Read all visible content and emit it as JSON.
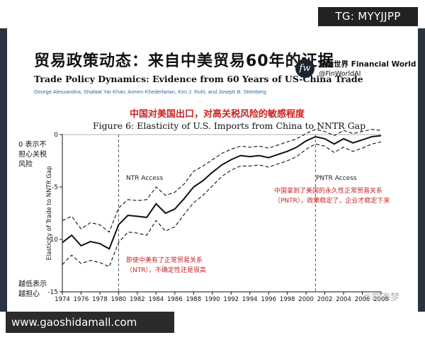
{
  "badge": "TG: MYYJJPP",
  "site": "www.gaoshidamall.com",
  "watermark": "©四海梦",
  "header": {
    "title_cn": "贸易政策动态：来自中美贸易60年的证据",
    "title_en": "Trade Policy Dynamics: Evidence from 60 Years of US-China Trade",
    "authors": "George Alessandria, Shafaat Yar Khan, Armen Khederlarian, Kim J. Ruhl, and Joseph B. Steinberg"
  },
  "brand": {
    "logo_text": "fw",
    "name": "金融世界 Financial World",
    "handle": "@FinWorldAI"
  },
  "figure": {
    "caption_cn": "中国对美国出口，对高关税风险的敏感程度",
    "caption_en": "Figure 6: Elasticity of U.S. Imports from China to NNTR Gap"
  },
  "side_notes": {
    "top_line1": "0 表示不",
    "top_line2": "担心关税",
    "top_line3": "风险",
    "bottom_line1": "越低表示",
    "bottom_line2": "越担心"
  },
  "annotations": {
    "ntr_access": "NTR Access",
    "pntr_access": "PNTR Access",
    "pntr_note_line1": "中国拿到了美国的永久性正常贸易关系",
    "pntr_note_line2": "（PNTR），政策稳定了，企业才稳定下来",
    "ntr_note_line1": "即使中美有了正常贸易关系",
    "ntr_note_line2": "（NTR），不确定性还是很高"
  },
  "colors": {
    "accent_red": "#cc2222",
    "line": "#111111",
    "frame": "#2c3340"
  },
  "chart_data": {
    "type": "line",
    "title": "Figure 6: Elasticity of U.S. Imports from China to NNTR Gap",
    "xlabel": "",
    "ylabel": "Elasticity of Trade to NNTR Gap",
    "xlim": [
      1974,
      2008
    ],
    "ylim": [
      -15,
      0
    ],
    "x_ticks": [
      1974,
      1976,
      1978,
      1980,
      1982,
      1984,
      1986,
      1988,
      1990,
      1992,
      1994,
      1996,
      1998,
      2000,
      2002,
      2004,
      2006,
      2008
    ],
    "x_tick_labels": [
      "1974",
      "1976",
      "1978",
      "1980",
      "1982",
      "1984",
      "1986",
      "1988",
      "1990",
      "1992",
      "1994",
      "1996",
      "1998",
      "2000",
      "2002",
      "2004",
      "2006",
      "2008"
    ],
    "y_ticks": [
      0,
      -5,
      -10,
      -15
    ],
    "y_tick_labels": [
      "0",
      "-5",
      "-10",
      "-15"
    ],
    "zero_line": true,
    "reference_lines": [
      {
        "x": 1980,
        "style": "dashed",
        "label": "NTR Access"
      },
      {
        "x": 2001,
        "style": "dashed",
        "label": "PNTR Access"
      }
    ],
    "x": [
      1974,
      1975,
      1976,
      1977,
      1978,
      1979,
      1980,
      1981,
      1982,
      1983,
      1984,
      1985,
      1986,
      1987,
      1988,
      1989,
      1990,
      1991,
      1992,
      1993,
      1994,
      1995,
      1996,
      1997,
      1998,
      1999,
      2000,
      2001,
      2002,
      2003,
      2004,
      2005,
      2006,
      2007,
      2008
    ],
    "series": [
      {
        "role": "estimate",
        "style": "solid",
        "values": [
          -10.3,
          -9.6,
          -10.6,
          -10.2,
          -10.4,
          -10.9,
          -8.6,
          -7.7,
          -7.8,
          -7.9,
          -6.6,
          -7.5,
          -7.1,
          -6.1,
          -5.0,
          -4.4,
          -3.6,
          -2.9,
          -2.4,
          -2.0,
          -2.1,
          -2.0,
          -2.2,
          -1.9,
          -1.6,
          -1.2,
          -0.6,
          -0.2,
          -0.4,
          -0.9,
          -0.4,
          -0.8,
          -0.5,
          -0.2,
          -0.1
        ]
      },
      {
        "role": "upper_ci",
        "style": "dashed",
        "values": [
          -8.2,
          -7.8,
          -9.0,
          -8.4,
          -8.6,
          -9.3,
          -7.0,
          -6.2,
          -6.3,
          -6.2,
          -5.0,
          -5.8,
          -5.5,
          -4.7,
          -3.5,
          -3.0,
          -2.4,
          -1.8,
          -1.4,
          -1.1,
          -1.2,
          -1.1,
          -1.3,
          -1.0,
          -0.7,
          -0.4,
          0.1,
          0.5,
          0.3,
          -0.1,
          0.4,
          0.1,
          0.3,
          0.5,
          0.4
        ]
      },
      {
        "role": "lower_ci",
        "style": "dashed",
        "values": [
          -12.4,
          -11.5,
          -12.3,
          -12.0,
          -12.2,
          -12.6,
          -10.3,
          -9.3,
          -9.4,
          -9.6,
          -8.2,
          -9.2,
          -8.8,
          -7.6,
          -6.5,
          -5.8,
          -4.9,
          -4.0,
          -3.4,
          -3.0,
          -3.0,
          -2.9,
          -3.1,
          -2.8,
          -2.5,
          -2.1,
          -1.4,
          -0.9,
          -1.1,
          -1.7,
          -1.2,
          -1.6,
          -1.3,
          -0.9,
          -0.7
        ]
      }
    ]
  }
}
